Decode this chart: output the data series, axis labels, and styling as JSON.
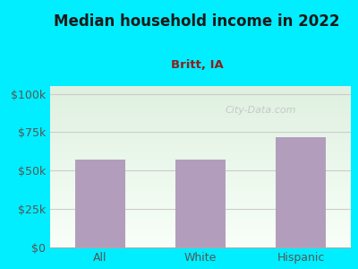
{
  "title": "Median household income in 2022",
  "subtitle": "Britt, IA",
  "categories": [
    "All",
    "White",
    "Hispanic"
  ],
  "values": [
    57000,
    57000,
    72000
  ],
  "bar_color": "#b39dbd",
  "yticks": [
    0,
    25000,
    50000,
    75000,
    100000
  ],
  "ytick_labels": [
    "$0",
    "$25k",
    "$50k",
    "$75k",
    "$100k"
  ],
  "ylim": [
    0,
    105000
  ],
  "bg_outer": "#00eeff",
  "bg_inner_top": "#dff0e0",
  "bg_inner_bottom": "#f8fff8",
  "title_color": "#1a1a1a",
  "subtitle_color": "#8b2020",
  "axis_color": "#555555",
  "watermark": "City-Data.com",
  "watermark_color": "#bbbbbb",
  "grid_color": "#cccccc"
}
